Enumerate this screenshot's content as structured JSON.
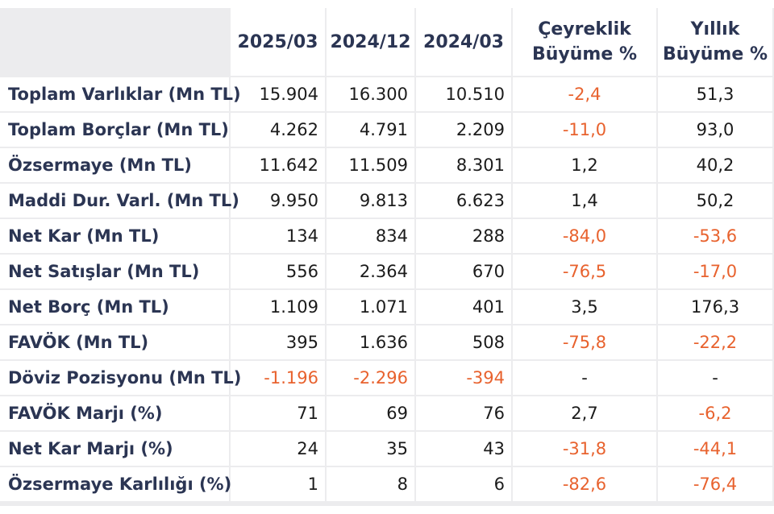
{
  "colors": {
    "header_text": "#2b3553",
    "negative": "#e8622e",
    "body_text": "#1b1b1b",
    "grid": "#ececee"
  },
  "table": {
    "headers": [
      "",
      "2025/03",
      "2024/12",
      "2024/03",
      "Çeyreklik Büyüme %",
      "Yıllık Büyüme %"
    ],
    "header_lines": {
      "quarterly": [
        "Çeyreklik",
        "Büyüme %"
      ],
      "yearly": [
        "Yıllık",
        "Büyüme %"
      ]
    },
    "rows": [
      {
        "label": "Toplam Varlıklar (Mn TL)",
        "values": [
          "15.904",
          "16.300",
          "10.510",
          "-2,4",
          "51,3"
        ]
      },
      {
        "label": "Toplam Borçlar (Mn TL)",
        "values": [
          "4.262",
          "4.791",
          "2.209",
          "-11,0",
          "93,0"
        ]
      },
      {
        "label": "Özsermaye (Mn TL)",
        "values": [
          "11.642",
          "11.509",
          "8.301",
          "1,2",
          "40,2"
        ]
      },
      {
        "label": "Maddi Dur. Varl. (Mn TL)",
        "values": [
          "9.950",
          "9.813",
          "6.623",
          "1,4",
          "50,2"
        ]
      },
      {
        "label": "Net Kar (Mn TL)",
        "values": [
          "134",
          "834",
          "288",
          "-84,0",
          "-53,6"
        ]
      },
      {
        "label": "Net Satışlar (Mn TL)",
        "values": [
          "556",
          "2.364",
          "670",
          "-76,5",
          "-17,0"
        ]
      },
      {
        "label": "Net Borç (Mn TL)",
        "values": [
          "1.109",
          "1.071",
          "401",
          "3,5",
          "176,3"
        ]
      },
      {
        "label": "FAVÖK (Mn TL)",
        "values": [
          "395",
          "1.636",
          "508",
          "-75,8",
          "-22,2"
        ]
      },
      {
        "label": "Döviz Pozisyonu (Mn TL)",
        "values": [
          "-1.196",
          "-2.296",
          "-394",
          "-",
          "-"
        ]
      },
      {
        "label": "FAVÖK Marjı (%)",
        "values": [
          "71",
          "69",
          "76",
          "2,7",
          "-6,2"
        ]
      },
      {
        "label": "Net Kar Marjı (%)",
        "values": [
          "24",
          "35",
          "43",
          "-31,8",
          "-44,1"
        ]
      },
      {
        "label": "Özsermaye Karlılığı (%)",
        "values": [
          "1",
          "8",
          "6",
          "-82,6",
          "-76,4"
        ]
      }
    ]
  }
}
